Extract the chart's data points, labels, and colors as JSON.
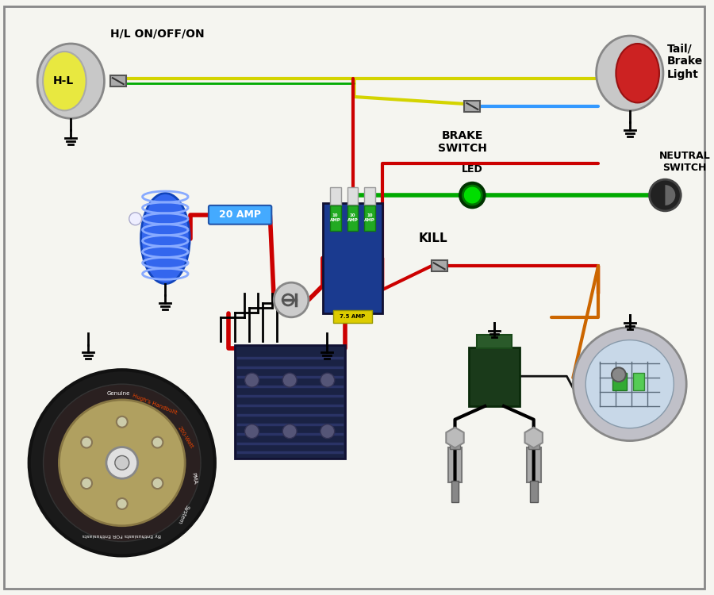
{
  "bg_color": "#f5f5f0",
  "border_color": "#888888",
  "wire_colors": {
    "yellow": "#d4d400",
    "red": "#cc0000",
    "green": "#00aa00",
    "blue": "#3399ff",
    "black": "#111111",
    "orange": "#cc6600"
  },
  "labels": {
    "hl_switch": "H/L ON/OFF/ON",
    "brake_switch": "BRAKE\nSWITCH",
    "tail_light": "Tail/\nBrake\nLight",
    "led": "LED",
    "neutral_switch": "NEUTRAL\nSWITCH",
    "kill": "KILL",
    "fuse_20amp": "20 AMP"
  }
}
